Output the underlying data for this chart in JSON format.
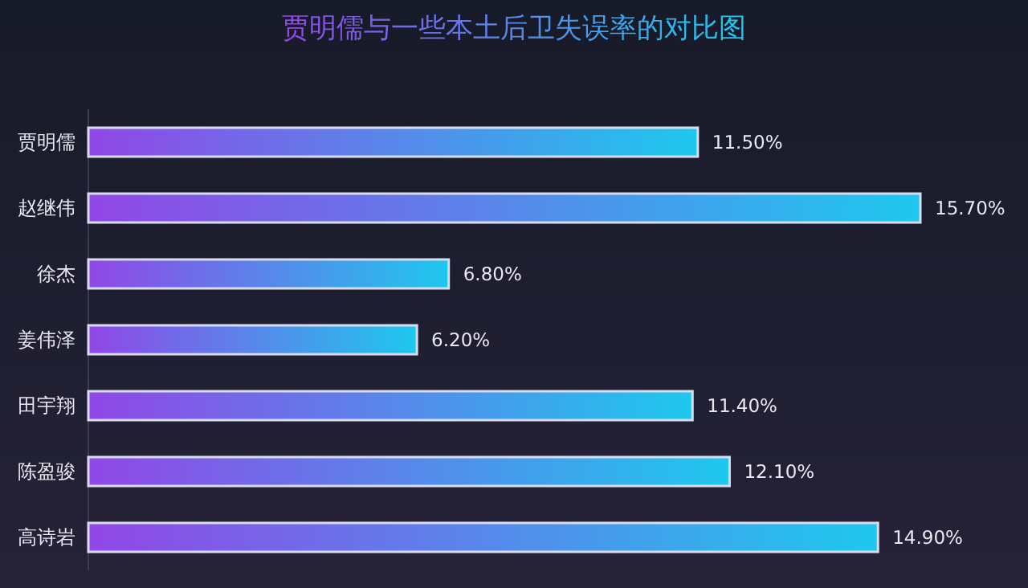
{
  "chart_data": {
    "type": "bar",
    "orientation": "horizontal",
    "title": "贾明儒与一些本土后卫失误率的对比图",
    "categories": [
      "贾明儒",
      "赵继伟",
      "徐杰",
      "姜伟泽",
      "田宇翔",
      "陈盈骏",
      "高诗岩"
    ],
    "values": [
      11.5,
      15.7,
      6.8,
      6.2,
      11.4,
      12.1,
      14.9
    ],
    "value_labels": [
      "11.50%",
      "15.70%",
      "6.80%",
      "6.20%",
      "11.40%",
      "12.10%",
      "14.90%"
    ],
    "color": "#9147e6"
  }
}
